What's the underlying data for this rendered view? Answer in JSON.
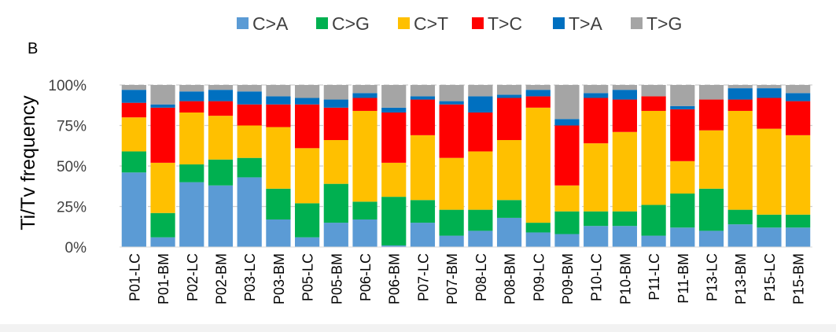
{
  "chart_data": {
    "type": "bar",
    "stacked": true,
    "panel_label": "B",
    "ylabel": "Ti/Tv frequency",
    "xlabel": "",
    "ylim": [
      0,
      100
    ],
    "yticks": [
      "0%",
      "25%",
      "50%",
      "75%",
      "100%"
    ],
    "grid": true,
    "legend_position": "top",
    "categories": [
      "P01-LC",
      "P01-BM",
      "P02-LC",
      "P02-BM",
      "P03-LC",
      "P03-BM",
      "P05-LC",
      "P05-BM",
      "P06-LC",
      "P06-BM",
      "P07-LC",
      "P07-BM",
      "P08-LC",
      "P08-BM",
      "P09-LC",
      "P09-BM",
      "P10-LC",
      "P10-BM",
      "P11-LC",
      "P11-BM",
      "P13-LC",
      "P13-BM",
      "P15-LC",
      "P15-BM"
    ],
    "series": [
      {
        "name": "C>A",
        "color": "#5b9bd5",
        "values": [
          46,
          6,
          40,
          38,
          43,
          17,
          6,
          15,
          17,
          1,
          15,
          7,
          10,
          18,
          9,
          8,
          13,
          13,
          7,
          12,
          10,
          14,
          12,
          12
        ]
      },
      {
        "name": "C>G",
        "color": "#00b050",
        "values": [
          13,
          15,
          11,
          16,
          12,
          19,
          21,
          24,
          11,
          30,
          14,
          16,
          13,
          11,
          6,
          14,
          9,
          9,
          19,
          21,
          26,
          9,
          8,
          8
        ]
      },
      {
        "name": "C>T",
        "color": "#ffc000",
        "values": [
          21,
          31,
          32,
          27,
          20,
          38,
          34,
          27,
          56,
          21,
          40,
          32,
          36,
          37,
          71,
          16,
          42,
          49,
          58,
          20,
          36,
          61,
          53,
          49
        ]
      },
      {
        "name": "T>C",
        "color": "#ff0000",
        "values": [
          9,
          34,
          7,
          9,
          13,
          14,
          27,
          20,
          8,
          31,
          22,
          33,
          24,
          26,
          7,
          37,
          28,
          20,
          9,
          32,
          19,
          7,
          19,
          21
        ]
      },
      {
        "name": "T>A",
        "color": "#0070c0",
        "values": [
          8,
          2,
          6,
          7,
          8,
          5,
          4,
          5,
          3,
          3,
          2,
          2,
          10,
          2,
          4,
          4,
          3,
          6,
          0,
          2,
          0,
          7,
          6,
          5
        ]
      },
      {
        "name": "T>G",
        "color": "#a5a5a5",
        "values": [
          3,
          12,
          4,
          3,
          4,
          7,
          8,
          9,
          5,
          14,
          7,
          10,
          7,
          6,
          3,
          21,
          5,
          3,
          7,
          13,
          9,
          2,
          2,
          5
        ]
      }
    ]
  }
}
